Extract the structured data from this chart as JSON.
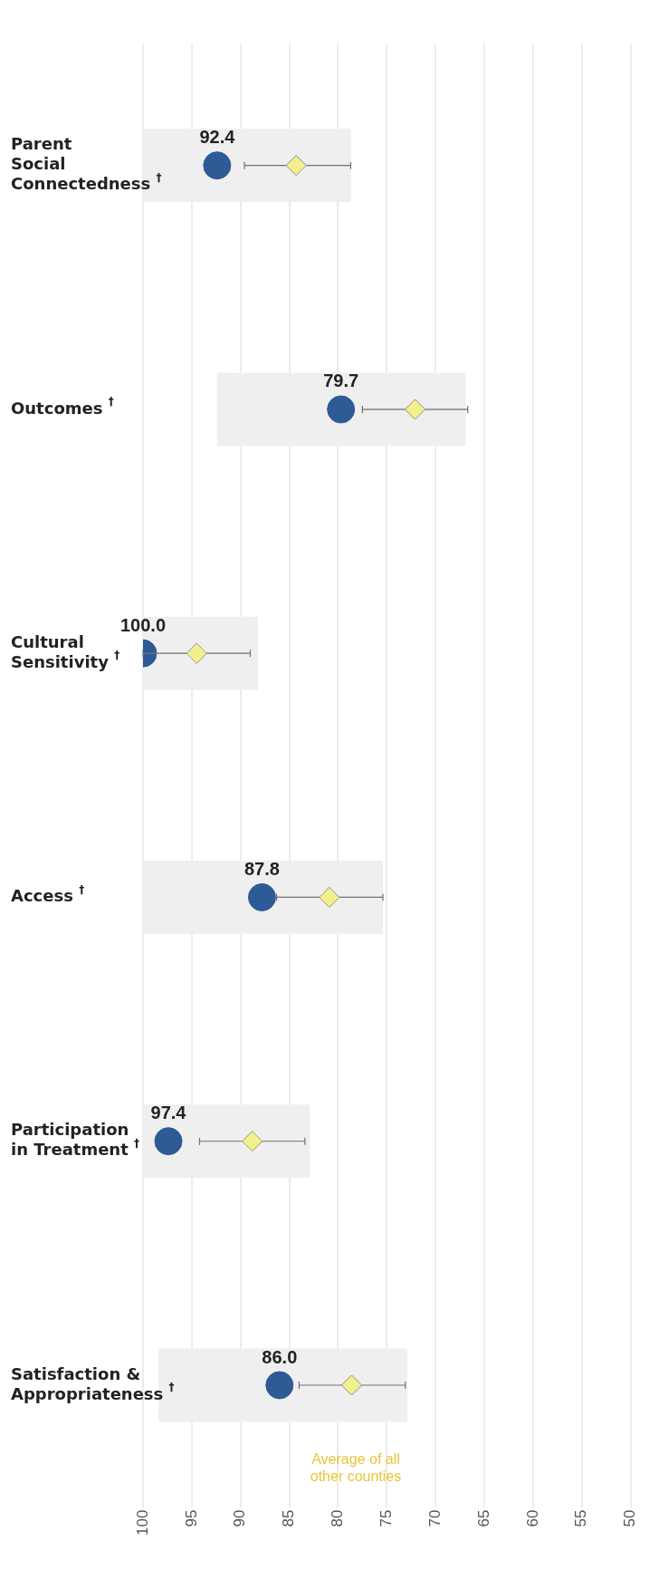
{
  "chart_data": {
    "type": "scatter",
    "orientation": "horizontal",
    "categories": [
      "Parent Social Connectedness $^{†}$",
      "Outcomes $^{†}$",
      "Cultural Sensitivity $^{†}$",
      "Access $^{†}$",
      "Participation in Treatment $^{†}$",
      "Satisfaction & Appropriateness $^{†}$"
    ],
    "xlim": [
      100,
      50
    ],
    "xticks": [
      100,
      95,
      90,
      85,
      80,
      75,
      70,
      65,
      60,
      55,
      50
    ],
    "grid": "x",
    "series": [
      {
        "type": "bar",
        "color": "#efefef",
        "base": [
          100,
          92.4,
          100,
          100,
          100,
          98.4
        ],
        "values": [
          -21.3,
          -25.5,
          -11.8,
          -24.6,
          -17.1,
          -25.5
        ]
      },
      {
        "marker": "circle",
        "color": "#2e5a95",
        "values": [
          92.4,
          79.7,
          100.0,
          87.8,
          97.4,
          86.0
        ],
        "value_labels": [
          "92.4",
          "79.7",
          "100.0",
          "87.8",
          "97.4",
          "86.0"
        ]
      },
      {
        "marker": "diamond",
        "color": "#f3f08c",
        "values": [
          84.3,
          72.1,
          94.5,
          80.9,
          88.8,
          78.6
        ],
        "errors": [
          [
            78.7,
            89.6
          ],
          [
            66.7,
            77.5
          ],
          [
            89.0,
            100
          ],
          [
            75.4,
            86.3
          ],
          [
            83.4,
            94.2
          ],
          [
            73.1,
            84.0
          ]
        ]
      }
    ],
    "annotations": [
      "Average of all other counties"
    ]
  }
}
